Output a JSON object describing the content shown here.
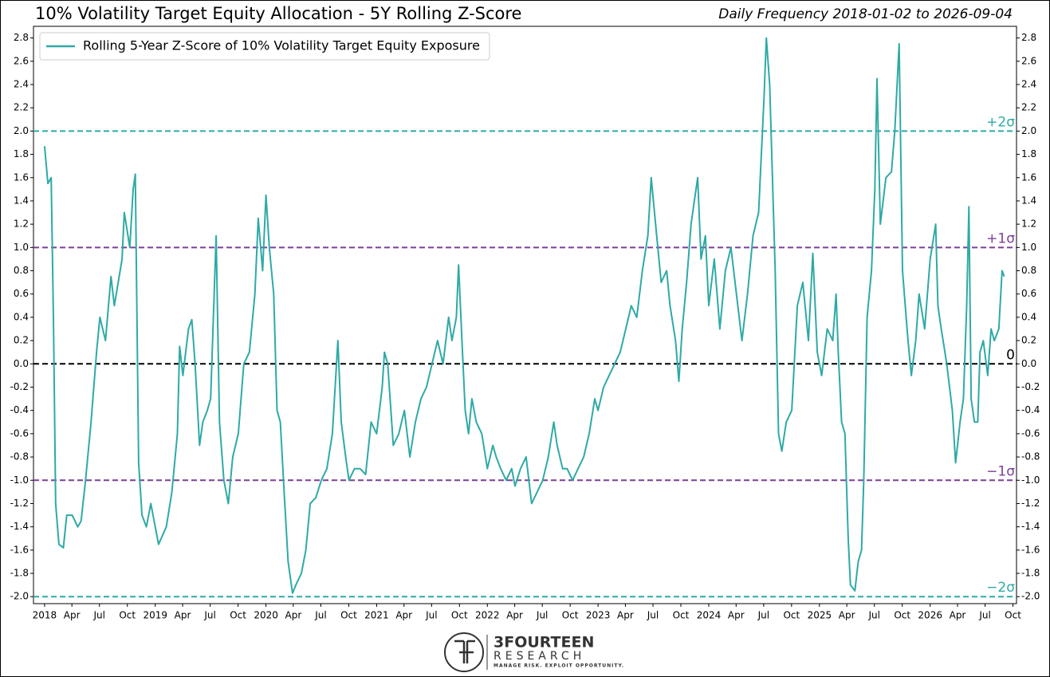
{
  "chart_data": {
    "type": "line",
    "title": "10% Volatility Target Equity Allocation - 5Y Rolling Z-Score",
    "subtitle": "Daily Frequency 2018-01-02 to 2026-09-04",
    "legend": "upper left",
    "grid": false,
    "x": [
      2018.0,
      2018.03,
      2018.06,
      2018.08,
      2018.1,
      2018.13,
      2018.17,
      2018.2,
      2018.25,
      2018.3,
      2018.33,
      2018.37,
      2018.42,
      2018.47,
      2018.5,
      2018.55,
      2018.6,
      2018.63,
      2018.7,
      2018.72,
      2018.77,
      2018.8,
      2018.82,
      2018.85,
      2018.88,
      2018.92,
      2018.96,
      2019.0,
      2019.03,
      2019.1,
      2019.15,
      2019.2,
      2019.22,
      2019.25,
      2019.3,
      2019.33,
      2019.36,
      2019.4,
      2019.43,
      2019.47,
      2019.5,
      2019.55,
      2019.58,
      2019.62,
      2019.66,
      2019.7,
      2019.75,
      2019.8,
      2019.85,
      2019.9,
      2019.93,
      2019.97,
      2020.0,
      2020.03,
      2020.07,
      2020.1,
      2020.13,
      2020.17,
      2020.2,
      2020.24,
      2020.27,
      2020.32,
      2020.36,
      2020.4,
      2020.45,
      2020.5,
      2020.55,
      2020.6,
      2020.65,
      2020.68,
      2020.72,
      2020.75,
      2020.8,
      2020.85,
      2020.9,
      2020.95,
      2021.0,
      2021.05,
      2021.07,
      2021.1,
      2021.15,
      2021.2,
      2021.25,
      2021.3,
      2021.35,
      2021.4,
      2021.45,
      2021.5,
      2021.55,
      2021.6,
      2021.65,
      2021.68,
      2021.72,
      2021.74,
      2021.77,
      2021.8,
      2021.83,
      2021.86,
      2021.9,
      2021.95,
      2022.0,
      2022.05,
      2022.08,
      2022.12,
      2022.17,
      2022.22,
      2022.25,
      2022.3,
      2022.35,
      2022.4,
      2022.45,
      2022.5,
      2022.55,
      2022.6,
      2022.63,
      2022.68,
      2022.72,
      2022.77,
      2022.82,
      2022.87,
      2022.92,
      2022.97,
      2023.0,
      2023.05,
      2023.1,
      2023.15,
      2023.2,
      2023.25,
      2023.3,
      2023.35,
      2023.4,
      2023.45,
      2023.48,
      2023.52,
      2023.57,
      2023.62,
      2023.65,
      2023.7,
      2023.73,
      2023.76,
      2023.8,
      2023.84,
      2023.87,
      2023.9,
      2023.93,
      2023.97,
      2024.0,
      2024.05,
      2024.1,
      2024.15,
      2024.2,
      2024.25,
      2024.3,
      2024.35,
      2024.4,
      2024.45,
      2024.5,
      2024.52,
      2024.55,
      2024.6,
      2024.63,
      2024.66,
      2024.7,
      2024.75,
      2024.8,
      2024.85,
      2024.9,
      2024.94,
      2024.98,
      2025.02,
      2025.07,
      2025.12,
      2025.15,
      2025.17,
      2025.2,
      2025.23,
      2025.26,
      2025.28,
      2025.32,
      2025.35,
      2025.38,
      2025.4,
      2025.43,
      2025.47,
      2025.5,
      2025.52,
      2025.55,
      2025.6,
      2025.65,
      2025.68,
      2025.72,
      2025.75,
      2025.8,
      2025.83,
      2025.87,
      2025.9,
      2025.95,
      2026.0,
      2026.05,
      2026.07,
      2026.1,
      2026.15,
      2026.2,
      2026.23,
      2026.27,
      2026.3,
      2026.33,
      2026.35,
      2026.37,
      2026.4,
      2026.43,
      2026.45,
      2026.48,
      2026.52,
      2026.55,
      2026.58,
      2026.62,
      2026.65,
      2026.67
    ],
    "series": [
      {
        "name": "Rolling 5-Year Z-Score of 10% Volatility Target Equity Exposure",
        "color": "#2eaaa6",
        "values": [
          1.87,
          1.55,
          1.6,
          0.4,
          -1.2,
          -1.55,
          -1.58,
          -1.3,
          -1.3,
          -1.4,
          -1.35,
          -1.0,
          -0.5,
          0.1,
          0.4,
          0.2,
          0.75,
          0.5,
          0.9,
          1.3,
          1.0,
          1.5,
          1.63,
          -0.85,
          -1.3,
          -1.4,
          -1.2,
          -1.4,
          -1.55,
          -1.4,
          -1.1,
          -0.6,
          0.15,
          -0.1,
          0.3,
          0.38,
          0.0,
          -0.7,
          -0.5,
          -0.4,
          -0.3,
          1.1,
          -0.5,
          -1.0,
          -1.2,
          -0.8,
          -0.6,
          0.0,
          0.1,
          0.6,
          1.25,
          0.8,
          1.45,
          1.0,
          0.6,
          -0.4,
          -0.5,
          -1.2,
          -1.7,
          -1.97,
          -1.9,
          -1.8,
          -1.6,
          -1.2,
          -1.15,
          -1.0,
          -0.9,
          -0.6,
          0.2,
          -0.5,
          -0.8,
          -1.0,
          -0.9,
          -0.9,
          -0.95,
          -0.5,
          -0.6,
          -0.2,
          0.1,
          0.0,
          -0.7,
          -0.6,
          -0.4,
          -0.8,
          -0.5,
          -0.3,
          -0.2,
          0.0,
          0.2,
          0.0,
          0.4,
          0.2,
          0.4,
          0.85,
          0.2,
          -0.4,
          -0.6,
          -0.3,
          -0.5,
          -0.6,
          -0.9,
          -0.7,
          -0.8,
          -0.9,
          -1.0,
          -0.9,
          -1.05,
          -0.9,
          -0.8,
          -1.2,
          -1.1,
          -1.0,
          -0.8,
          -0.5,
          -0.7,
          -0.9,
          -0.9,
          -1.0,
          -0.9,
          -0.8,
          -0.6,
          -0.3,
          -0.4,
          -0.2,
          -0.1,
          0.0,
          0.1,
          0.3,
          0.5,
          0.4,
          0.8,
          1.1,
          1.6,
          1.2,
          0.7,
          0.8,
          0.5,
          0.2,
          -0.15,
          0.3,
          0.7,
          1.2,
          1.4,
          1.6,
          0.9,
          1.1,
          0.5,
          0.9,
          0.3,
          0.8,
          1.0,
          0.6,
          0.2,
          0.6,
          1.1,
          1.3,
          2.3,
          2.8,
          2.4,
          0.8,
          -0.6,
          -0.75,
          -0.5,
          -0.4,
          0.5,
          0.7,
          0.2,
          0.95,
          0.1,
          -0.1,
          0.3,
          0.2,
          0.6,
          0.1,
          -0.5,
          -0.6,
          -1.5,
          -1.9,
          -1.95,
          -1.7,
          -1.6,
          -1.0,
          0.4,
          0.8,
          1.5,
          2.45,
          1.2,
          1.6,
          1.65,
          2.0,
          2.75,
          0.8,
          0.2,
          -0.1,
          0.2,
          0.6,
          0.3,
          0.9,
          1.2,
          0.5,
          0.3,
          0.0,
          -0.4,
          -0.85,
          -0.5,
          -0.3,
          0.5,
          1.35,
          -0.3,
          -0.5,
          -0.5,
          0.1,
          0.2,
          -0.1,
          0.3,
          0.2,
          0.3,
          0.8,
          0.75
        ]
      }
    ],
    "hlines": [
      {
        "value": 2,
        "label": "+2σ",
        "color": "#2eaaa6"
      },
      {
        "value": 1,
        "label": "+1σ",
        "color": "#7b3f98"
      },
      {
        "value": 0,
        "label": "0",
        "color": "#000000"
      },
      {
        "value": -1,
        "label": "−1σ",
        "color": "#7b3f98"
      },
      {
        "value": -2,
        "label": "−2σ",
        "color": "#2eaaa6"
      }
    ],
    "xlim": [
      2017.9,
      2026.78
    ],
    "xticks": [
      {
        "value": 2018.0,
        "label": "2018"
      },
      {
        "value": 2018.247,
        "label": "Apr"
      },
      {
        "value": 2018.496,
        "label": "Jul"
      },
      {
        "value": 2018.748,
        "label": "Oct"
      },
      {
        "value": 2019.0,
        "label": "2019"
      },
      {
        "value": 2019.247,
        "label": "Apr"
      },
      {
        "value": 2019.496,
        "label": "Jul"
      },
      {
        "value": 2019.748,
        "label": "Oct"
      },
      {
        "value": 2020.0,
        "label": "2020"
      },
      {
        "value": 2020.247,
        "label": "Apr"
      },
      {
        "value": 2020.496,
        "label": "Jul"
      },
      {
        "value": 2020.748,
        "label": "Oct"
      },
      {
        "value": 2021.0,
        "label": "2021"
      },
      {
        "value": 2021.247,
        "label": "Apr"
      },
      {
        "value": 2021.496,
        "label": "Jul"
      },
      {
        "value": 2021.748,
        "label": "Oct"
      },
      {
        "value": 2022.0,
        "label": "2022"
      },
      {
        "value": 2022.247,
        "label": "Apr"
      },
      {
        "value": 2022.496,
        "label": "Jul"
      },
      {
        "value": 2022.748,
        "label": "Oct"
      },
      {
        "value": 2023.0,
        "label": "2023"
      },
      {
        "value": 2023.247,
        "label": "Apr"
      },
      {
        "value": 2023.496,
        "label": "Jul"
      },
      {
        "value": 2023.748,
        "label": "Oct"
      },
      {
        "value": 2024.0,
        "label": "2024"
      },
      {
        "value": 2024.247,
        "label": "Apr"
      },
      {
        "value": 2024.496,
        "label": "Jul"
      },
      {
        "value": 2024.748,
        "label": "Oct"
      },
      {
        "value": 2025.0,
        "label": "2025"
      },
      {
        "value": 2025.247,
        "label": "Apr"
      },
      {
        "value": 2025.496,
        "label": "Jul"
      },
      {
        "value": 2025.748,
        "label": "Oct"
      },
      {
        "value": 2026.0,
        "label": "2026"
      },
      {
        "value": 2026.247,
        "label": "Apr"
      },
      {
        "value": 2026.496,
        "label": "Jul"
      },
      {
        "value": 2026.748,
        "label": "Oct"
      }
    ],
    "ylim": [
      -2.06,
      2.9
    ],
    "yticks": [
      {
        "value": -2.0,
        "label": "-2.0"
      },
      {
        "value": -1.8,
        "label": "-1.8"
      },
      {
        "value": -1.6,
        "label": "-1.6"
      },
      {
        "value": -1.4,
        "label": "-1.4"
      },
      {
        "value": -1.2,
        "label": "-1.2"
      },
      {
        "value": -1.0,
        "label": "-1.0"
      },
      {
        "value": -0.8,
        "label": "-0.8"
      },
      {
        "value": -0.6,
        "label": "-0.6"
      },
      {
        "value": -0.4,
        "label": "-0.4"
      },
      {
        "value": -0.2,
        "label": "-0.2"
      },
      {
        "value": 0,
        "label": "0.0"
      },
      {
        "value": 0.2,
        "label": "0.2"
      },
      {
        "value": 0.4,
        "label": "0.4"
      },
      {
        "value": 0.6,
        "label": "0.6"
      },
      {
        "value": 0.8,
        "label": "0.8"
      },
      {
        "value": 1.0,
        "label": "1.0"
      },
      {
        "value": 1.2,
        "label": "1.2"
      },
      {
        "value": 1.4,
        "label": "1.4"
      },
      {
        "value": 1.6,
        "label": "1.6"
      },
      {
        "value": 1.8,
        "label": "1.8"
      },
      {
        "value": 2.0,
        "label": "2.0"
      },
      {
        "value": 2.2,
        "label": "2.2"
      },
      {
        "value": 2.4,
        "label": "2.4"
      },
      {
        "value": 2.6,
        "label": "2.6"
      },
      {
        "value": 2.8,
        "label": "2.8"
      }
    ]
  },
  "logo": {
    "name": "3FOURTEEN",
    "sub": "RESEARCH",
    "tagline": "MANAGE RISK. EXPLOIT OPPORTUNITY."
  }
}
